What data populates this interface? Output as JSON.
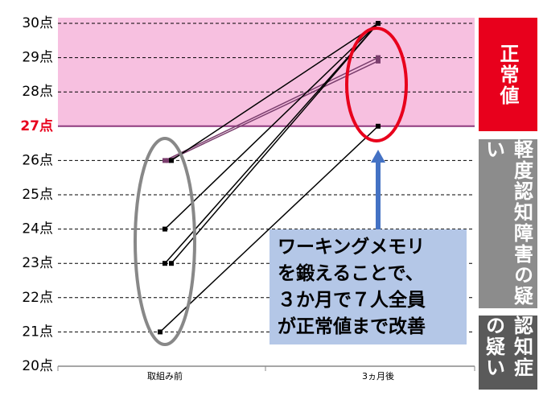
{
  "chart_data": {
    "type": "slope",
    "categories": [
      "取組み前",
      "3ヵ月後"
    ],
    "series": [
      {
        "color": "#7b3f6e",
        "values": [
          26,
          29
        ]
      },
      {
        "color": "#7b3f6e",
        "values": [
          26,
          28.9
        ]
      },
      {
        "color": "#000000",
        "values": [
          26,
          30
        ]
      },
      {
        "color": "#000000",
        "values": [
          24,
          30
        ]
      },
      {
        "color": "#000000",
        "values": [
          23,
          30
        ]
      },
      {
        "color": "#000000",
        "values": [
          23,
          30
        ]
      },
      {
        "color": "#000000",
        "values": [
          21,
          27
        ]
      }
    ],
    "ylim": [
      20,
      30
    ],
    "yticks": [
      {
        "value": 20,
        "label": "20点"
      },
      {
        "value": 21,
        "label": "21点"
      },
      {
        "value": 22,
        "label": "22点"
      },
      {
        "value": 23,
        "label": "23点"
      },
      {
        "value": 24,
        "label": "24点"
      },
      {
        "value": 25,
        "label": "25点"
      },
      {
        "value": 26,
        "label": "26点"
      },
      {
        "value": 27,
        "label": "27点",
        "color": "#e8001c"
      },
      {
        "value": 28,
        "label": "28点"
      },
      {
        "value": 29,
        "label": "29点"
      },
      {
        "value": 30,
        "label": "30点"
      }
    ],
    "normal_range": {
      "values": [
        27,
        30
      ],
      "color": "#f7c0e0"
    },
    "grid": true,
    "zones": [
      {
        "label": "正常値",
        "color": "#e8001c"
      },
      {
        "label": "軽度認知障害の疑い",
        "color": "#8c8c8c"
      },
      {
        "label": "認知症の疑い",
        "color": "#5a5a5a"
      }
    ],
    "annotation": {
      "lines": [
        "ワーキングメモリ",
        "を鍛えることで、",
        "３か月で７人全員",
        "が正常値まで改善"
      ]
    }
  }
}
